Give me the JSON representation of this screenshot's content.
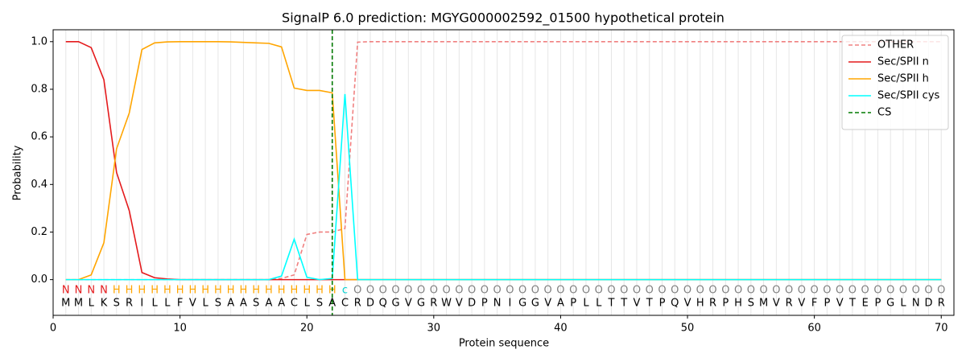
{
  "chart_data": {
    "type": "line",
    "title": "SignalP 6.0 prediction: MGYG000002592_01500 hypothetical protein",
    "x_label": "Protein sequence",
    "y_label": "Probability",
    "x": [
      1,
      2,
      3,
      4,
      5,
      6,
      7,
      8,
      9,
      10,
      11,
      12,
      13,
      14,
      15,
      16,
      17,
      18,
      19,
      20,
      21,
      22,
      23,
      24,
      25,
      26,
      27,
      28,
      29,
      30,
      31,
      32,
      33,
      34,
      35,
      36,
      37,
      38,
      39,
      40,
      41,
      42,
      43,
      44,
      45,
      46,
      47,
      48,
      49,
      50,
      51,
      52,
      53,
      54,
      55,
      56,
      57,
      58,
      59,
      60,
      61,
      62,
      63,
      64,
      65,
      66,
      67,
      68,
      69,
      70
    ],
    "series": [
      {
        "name": "OTHER",
        "color": "#f08080",
        "dash": true,
        "values": [
          0,
          0,
          0,
          0,
          0,
          0,
          0,
          0,
          0,
          0,
          0,
          0,
          0,
          0,
          0,
          0,
          0,
          0.005,
          0.02,
          0.19,
          0.2,
          0.2,
          0.215,
          0.998,
          1,
          1,
          1,
          1,
          1,
          1,
          1,
          1,
          1,
          1,
          1,
          1,
          1,
          1,
          1,
          1,
          1,
          1,
          1,
          1,
          1,
          1,
          1,
          1,
          1,
          1,
          1,
          1,
          1,
          1,
          1,
          1,
          1,
          1,
          1,
          1,
          1,
          1,
          1,
          1,
          1,
          1,
          1,
          1,
          1,
          1
        ]
      },
      {
        "name": "Sec/SPII n",
        "color": "#e41a1c",
        "dash": false,
        "values": [
          1,
          1,
          0.975,
          0.84,
          0.45,
          0.29,
          0.03,
          0.008,
          0.003,
          0,
          0,
          0,
          0,
          0,
          0,
          0,
          0,
          0,
          0,
          0,
          0,
          0,
          0,
          0,
          0,
          0,
          0,
          0,
          0,
          0,
          0,
          0,
          0,
          0,
          0,
          0,
          0,
          0,
          0,
          0,
          0,
          0,
          0,
          0,
          0,
          0,
          0,
          0,
          0,
          0,
          0,
          0,
          0,
          0,
          0,
          0,
          0,
          0,
          0,
          0,
          0,
          0,
          0,
          0,
          0,
          0,
          0,
          0,
          0,
          0
        ]
      },
      {
        "name": "Sec/SPII h",
        "color": "#ffa500",
        "dash": false,
        "values": [
          0,
          0,
          0.02,
          0.155,
          0.55,
          0.7,
          0.967,
          0.995,
          0.999,
          1,
          1,
          1,
          1,
          0.999,
          0.997,
          0.995,
          0.993,
          0.978,
          0.805,
          0.795,
          0.795,
          0.785,
          0,
          0,
          0,
          0,
          0,
          0,
          0,
          0,
          0,
          0,
          0,
          0,
          0,
          0,
          0,
          0,
          0,
          0,
          0,
          0,
          0,
          0,
          0,
          0,
          0,
          0,
          0,
          0,
          0,
          0,
          0,
          0,
          0,
          0,
          0,
          0,
          0,
          0,
          0,
          0,
          0,
          0,
          0,
          0,
          0,
          0,
          0,
          0
        ]
      },
      {
        "name": "Sec/SPII cys",
        "color": "#00ffff",
        "dash": false,
        "values": [
          0,
          0,
          0,
          0,
          0,
          0,
          0,
          0,
          0,
          0,
          0,
          0,
          0,
          0,
          0,
          0,
          0,
          0.015,
          0.17,
          0.01,
          0,
          0.005,
          0.78,
          0,
          0,
          0,
          0,
          0,
          0,
          0,
          0,
          0,
          0,
          0,
          0,
          0,
          0,
          0,
          0,
          0,
          0,
          0,
          0,
          0,
          0,
          0,
          0,
          0,
          0,
          0,
          0,
          0,
          0,
          0,
          0,
          0,
          0,
          0,
          0,
          0,
          0,
          0,
          0,
          0,
          0,
          0,
          0,
          0,
          0,
          0
        ]
      }
    ],
    "cs": {
      "name": "CS",
      "x": 22,
      "color": "#007a00"
    },
    "labels": [
      "N",
      "N",
      "N",
      "N",
      "H",
      "H",
      "H",
      "H",
      "H",
      "H",
      "H",
      "H",
      "H",
      "H",
      "H",
      "H",
      "H",
      "H",
      "H",
      "H",
      "H",
      "H",
      "c",
      "O",
      "O",
      "O",
      "O",
      "O",
      "O",
      "O",
      "O",
      "O",
      "O",
      "O",
      "O",
      "O",
      "O",
      "O",
      "O",
      "O",
      "O",
      "O",
      "O",
      "O",
      "O",
      "O",
      "O",
      "O",
      "O",
      "O",
      "O",
      "O",
      "O",
      "O",
      "O",
      "O",
      "O",
      "O",
      "O",
      "O",
      "O",
      "O",
      "O",
      "O",
      "O",
      "O",
      "O",
      "O",
      "O",
      "O"
    ],
    "label_colors": {
      "N": "#e41a1c",
      "H": "#ffa500",
      "c": "#00d0d0",
      "O": "#808080"
    },
    "sequence": [
      "M",
      "M",
      "L",
      "K",
      "S",
      "R",
      "I",
      "L",
      "L",
      "F",
      "V",
      "L",
      "S",
      "A",
      "A",
      "S",
      "A",
      "A",
      "C",
      "L",
      "S",
      "A",
      "C",
      "R",
      "D",
      "Q",
      "G",
      "V",
      "G",
      "R",
      "W",
      "V",
      "D",
      "P",
      "N",
      "I",
      "G",
      "G",
      "V",
      "A",
      "P",
      "L",
      "L",
      "T",
      "T",
      "V",
      "T",
      "P",
      "Q",
      "V",
      "H",
      "R",
      "P",
      "H",
      "S",
      "M",
      "V",
      "R",
      "V",
      "F",
      "P",
      "V",
      "T",
      "E",
      "P",
      "G",
      "L",
      "N",
      "D",
      "R"
    ],
    "xlim": [
      0,
      71
    ],
    "ylim": [
      -0.15,
      1.05
    ],
    "xticks": [
      0,
      10,
      20,
      30,
      40,
      50,
      60,
      70
    ],
    "yticks": [
      {
        "value": 0,
        "label": "0.0"
      },
      0.2,
      0.4,
      0.6,
      0.8,
      {
        "value": 1,
        "label": "1.0"
      }
    ],
    "x_minor_grid": true,
    "legend": "upper right"
  }
}
